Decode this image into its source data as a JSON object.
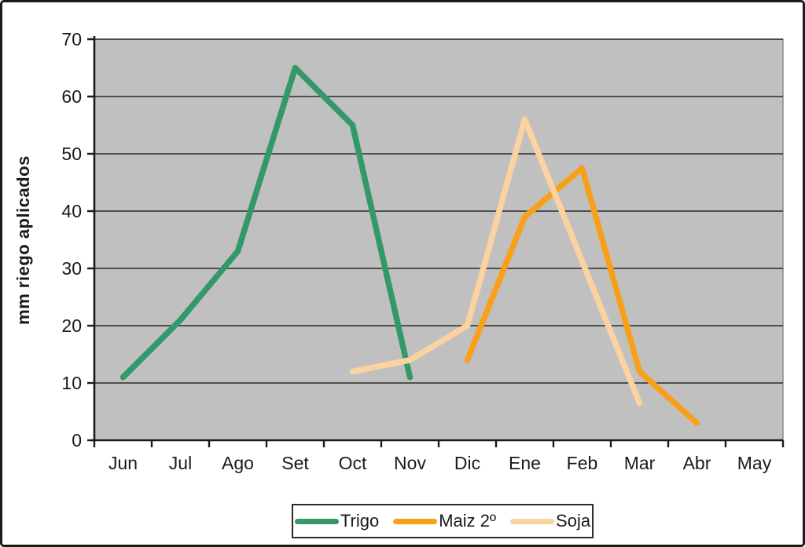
{
  "figure": {
    "background": "#ffffff",
    "border_color": "#1a1a1a"
  },
  "chart_data": {
    "type": "line",
    "title": "",
    "xlabel": "",
    "ylabel": "mm riego aplicados",
    "categories": [
      "Jun",
      "Jul",
      "Ago",
      "Set",
      "Oct",
      "Nov",
      "Dic",
      "Ene",
      "Feb",
      "Mar",
      "Abr",
      "May"
    ],
    "series": [
      {
        "name": "Trigo",
        "color": "#339966",
        "points": [
          [
            "Jun",
            11
          ],
          [
            "Jul",
            21
          ],
          [
            "Ago",
            33
          ],
          [
            "Set",
            65
          ],
          [
            "Oct",
            55
          ],
          [
            "Nov",
            11
          ]
        ]
      },
      {
        "name": "Maiz 2º",
        "color": "#F9A01B",
        "points": [
          [
            "Dic",
            14
          ],
          [
            "Ene",
            39
          ],
          [
            "Feb",
            47.5
          ],
          [
            "Mar",
            12
          ],
          [
            "Abr",
            3
          ]
        ]
      },
      {
        "name": "Soja",
        "color": "#FBD2A0",
        "points": [
          [
            "Oct",
            12
          ],
          [
            "Nov",
            14
          ],
          [
            "Dic",
            20
          ],
          [
            "Ene",
            56
          ],
          [
            "Mar",
            6.5
          ]
        ]
      }
    ],
    "ylim": [
      0,
      70
    ],
    "y_ticks": [
      0,
      10,
      20,
      30,
      40,
      50,
      60,
      70
    ],
    "grid": "horizontal",
    "legend_position": "bottom",
    "plot_bg": "#C0C0C0",
    "plot_border": "#8a8a8a",
    "grid_color": "#2b2b2b",
    "axis_color": "#1a1a1a",
    "tick_label_color": "#1a1a1a"
  }
}
